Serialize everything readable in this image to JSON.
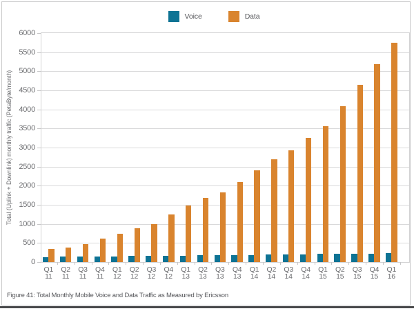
{
  "figure": {
    "caption": "Figure 41: Total Monthly Mobile Voice and Data Traffic as Measured by Ericsson"
  },
  "legend": {
    "position": "top-center",
    "items": [
      {
        "label": "Voice",
        "swatch_icon": "square-swatch",
        "color": "#0e7394"
      },
      {
        "label": "Data",
        "swatch_icon": "square-swatch",
        "color": "#d9842e"
      }
    ]
  },
  "chart_data": {
    "type": "bar",
    "title": "",
    "xlabel": "",
    "ylabel": "Total (Uplink + Downlink) monthly traffic (PetaByte/month)",
    "ylim": [
      0,
      6000
    ],
    "ytick_step": 500,
    "yticks": [
      0,
      500,
      1000,
      1500,
      2000,
      2500,
      3000,
      3500,
      4000,
      4500,
      5000,
      5500,
      6000
    ],
    "grid": true,
    "legend_position": "top-center",
    "categories": [
      "Q1 11",
      "Q2 11",
      "Q3 11",
      "Q4 11",
      "Q1 12",
      "Q2 12",
      "Q3 12",
      "Q4 12",
      "Q1 13",
      "Q2 13",
      "Q3 13",
      "Q4 13",
      "Q1 14",
      "Q2 14",
      "Q3 14",
      "Q4 14",
      "Q1 15",
      "Q2 15",
      "Q3 15",
      "Q4 15",
      "Q1 16"
    ],
    "series": [
      {
        "name": "Voice",
        "color": "#0e7394",
        "values": [
          135,
          140,
          140,
          145,
          150,
          155,
          160,
          165,
          170,
          175,
          180,
          185,
          190,
          195,
          200,
          205,
          210,
          215,
          220,
          225,
          230
        ]
      },
      {
        "name": "Data",
        "color": "#d9842e",
        "values": [
          340,
          380,
          470,
          620,
          750,
          880,
          1000,
          1250,
          1480,
          1690,
          1820,
          2100,
          2400,
          2700,
          2930,
          3250,
          3560,
          4080,
          4650,
          5180,
          5750
        ]
      }
    ]
  }
}
